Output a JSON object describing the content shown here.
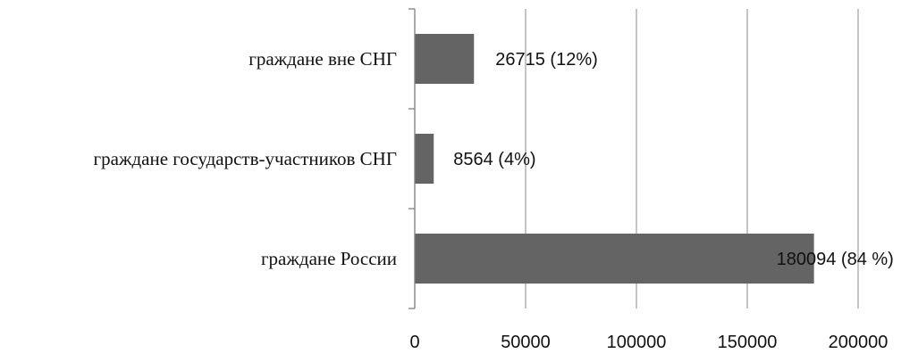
{
  "chart_data": {
    "type": "bar",
    "orientation": "horizontal",
    "categories": [
      "граждане вне СНГ",
      "граждане государств-участников СНГ",
      "граждане России"
    ],
    "values": [
      26715,
      8564,
      180094
    ],
    "data_labels": [
      "26715 (12%)",
      "8564 (4%)",
      "180094 (84 %)"
    ],
    "xlim": [
      0,
      200000
    ],
    "x_ticks": [
      0,
      50000,
      100000,
      150000,
      200000
    ],
    "x_tick_labels": [
      "0",
      "50000",
      "100000",
      "150000",
      "200000"
    ],
    "title": "",
    "xlabel": "",
    "ylabel": "",
    "grid": "vertical",
    "legend": "none",
    "bar_color": "#646464",
    "grid_color": "#a6a6a6",
    "axis_color": "#808080"
  }
}
